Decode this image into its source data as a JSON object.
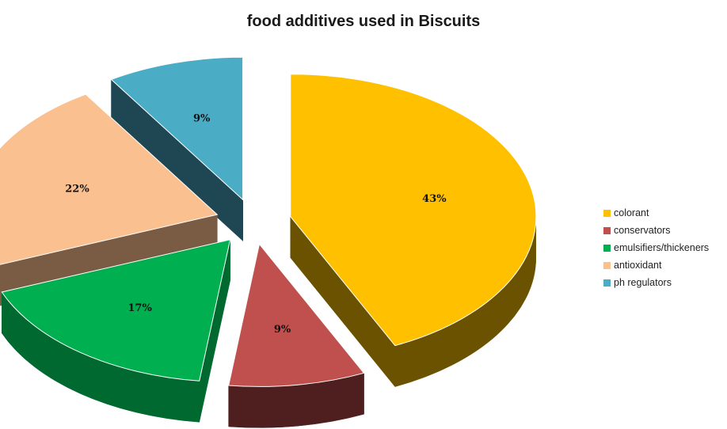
{
  "chart_data": {
    "type": "pie",
    "title": "food additives used in Biscuits",
    "categories": [
      "colorant",
      "conservators",
      "emulsifiers/thickeners",
      "antioxidant",
      "ph regulators"
    ],
    "values": [
      43,
      9,
      17,
      22,
      9
    ],
    "data_labels": [
      "43%",
      "9%",
      "17%",
      "22%",
      "9%"
    ],
    "colors": [
      "#FFC000",
      "#C0504D",
      "#00B050",
      "#FAC090",
      "#4BACC6"
    ],
    "side_colors": [
      "#6B5200",
      "#4E1F1E",
      "#00692F",
      "#7A5C45",
      "#1E4653"
    ],
    "legend_position": "right",
    "exploded": true,
    "style": "3d"
  }
}
